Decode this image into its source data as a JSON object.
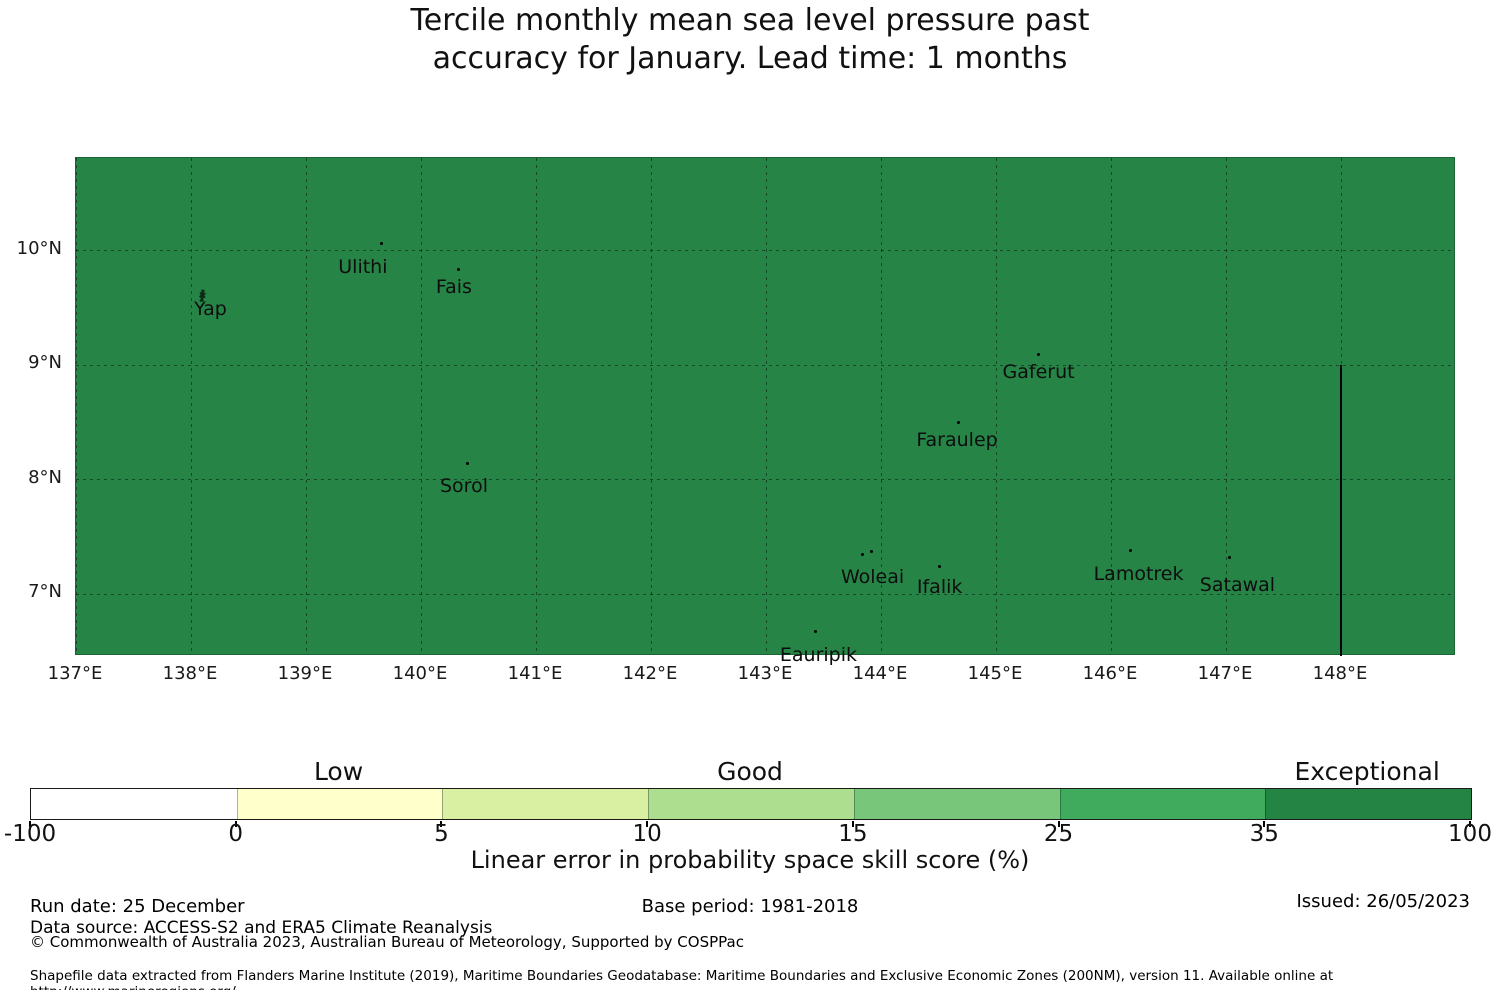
{
  "title": {
    "line1": "Tercile monthly mean sea level pressure past",
    "line2": "accuracy for January. Lead time: 1 months"
  },
  "chart_data": {
    "type": "heatmap",
    "title": "Tercile monthly mean sea level pressure past accuracy for January. Lead time: 1 months",
    "xlabel": "Linear error in probability space skill score (%)",
    "map": {
      "fill_color": "#268447",
      "region_value_class": "35-100",
      "extent": {
        "lon_min": 137.0,
        "lon_max": 149.0,
        "lat_min": 6.46,
        "lat_max": 10.81
      },
      "grid_lons": [
        137,
        138,
        139,
        140,
        141,
        142,
        143,
        144,
        145,
        146,
        147,
        148
      ],
      "grid_lats": [
        7,
        8,
        9,
        10
      ],
      "lon_tick_values": [
        137,
        138,
        139,
        140,
        141,
        142,
        143,
        144,
        145,
        146,
        147,
        148
      ],
      "lon_tick_labels": [
        "137°E",
        "138°E",
        "139°E",
        "140°E",
        "141°E",
        "142°E",
        "143°E",
        "144°E",
        "145°E",
        "146°E",
        "147°E",
        "148°E"
      ],
      "lat_tick_values": [
        10,
        9,
        8,
        7
      ],
      "lat_tick_labels": [
        "10°N",
        "9°N",
        "8°N",
        "7°N"
      ],
      "boundary_line": {
        "lon": 148.0,
        "lat_from": 9.0,
        "lat_to": 6.46
      },
      "islands": [
        {
          "name": "Yap",
          "lon": 138.1,
          "lat": 9.61,
          "label_offset": [
            8,
            6
          ],
          "marker": "polygon"
        },
        {
          "name": "Ulithi",
          "lon": 139.66,
          "lat": 10.06,
          "label_offset": [
            -19,
            15
          ],
          "marker": "dot"
        },
        {
          "name": "Fais",
          "lon": 140.33,
          "lat": 9.84,
          "label_offset": [
            -5,
            10
          ],
          "marker": "dot"
        },
        {
          "name": "Sorol",
          "lon": 140.4,
          "lat": 8.14,
          "label_offset": [
            -3,
            14
          ],
          "marker": "dot"
        },
        {
          "name": "Gaferut",
          "lon": 145.37,
          "lat": 9.09,
          "label_offset": [
            0,
            9
          ],
          "marker": "dot"
        },
        {
          "name": "Faraulep",
          "lon": 144.67,
          "lat": 8.5,
          "label_offset": [
            -1,
            10
          ],
          "marker": "dot"
        },
        {
          "name": "Woleai",
          "lon": 143.84,
          "lat": 7.35,
          "label_offset": [
            10,
            15
          ],
          "marker": "dot",
          "extra_dots": [
            [
              143.92,
              7.37
            ]
          ]
        },
        {
          "name": "Ifalik",
          "lon": 144.51,
          "lat": 7.24,
          "label_offset": [
            0,
            12
          ],
          "marker": "dot"
        },
        {
          "name": "Lamotrek",
          "lon": 146.17,
          "lat": 7.38,
          "label_offset": [
            8,
            15
          ],
          "marker": "dot"
        },
        {
          "name": "Satawal",
          "lon": 147.03,
          "lat": 7.32,
          "label_offset": [
            8,
            19
          ],
          "marker": "dot"
        },
        {
          "name": "Eauripik",
          "lon": 143.43,
          "lat": 6.67,
          "label_offset": [
            3,
            15
          ],
          "marker": "dot"
        }
      ]
    },
    "colorbar": {
      "bounds": [
        -100,
        0,
        5,
        10,
        15,
        25,
        35,
        100
      ],
      "tick_labels": [
        "-100",
        "0",
        "5",
        "10",
        "15",
        "25",
        "35",
        "100"
      ],
      "colors": [
        "#ffffff",
        "#ffffcc",
        "#d9f0a3",
        "#addd8e",
        "#78c679",
        "#41ab5d",
        "#238443"
      ],
      "category_labels": [
        {
          "text": "Low",
          "segment": 1
        },
        {
          "text": "Good",
          "segment": 3
        },
        {
          "text": "Exceptional",
          "segment": 6
        }
      ]
    }
  },
  "footer": {
    "run_date": "Run date: 25 December",
    "base_period": "Base period: 1981-2018",
    "issued": "Issued: 26/05/2023",
    "data_source": "Data source: ACCESS-S2 and ERA5 Climate Reanalysis",
    "copyright": "© Commonwealth of Australia 2023, Australian Bureau of Meteorology, Supported by COSPPac",
    "shapefile_note": "Shapefile data extracted from Flanders Marine Institute (2019), Maritime Boundaries Geodatabase: Maritime Boundaries and Exclusive Economic Zones (200NM), version 11. Available online at http://www.marineregions.org/."
  }
}
